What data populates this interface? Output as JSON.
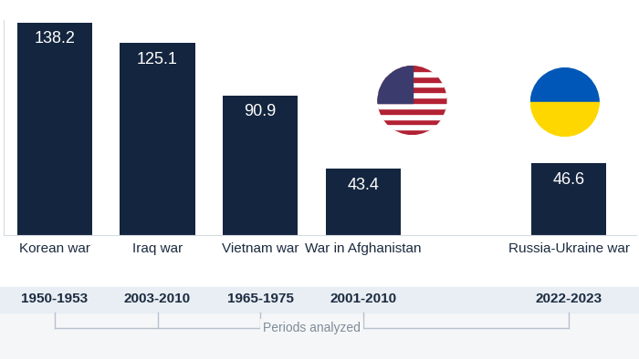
{
  "chart_data": {
    "type": "bar",
    "categories": [
      "Korean war",
      "Iraq war",
      "Vietnam war",
      "War in Afghanistan",
      null,
      "Russia-Ukraine war"
    ],
    "values": [
      138.2,
      125.1,
      90.9,
      43.4,
      null,
      46.6
    ],
    "periods": [
      "1950-1953",
      "2003-2010",
      "1965-1975",
      "2001-2010",
      null,
      "2022-2023"
    ],
    "annotation": "Periods analyzed",
    "color": "#14253f",
    "ylim": [
      0,
      140
    ],
    "yticks": [],
    "data_labels": true,
    "tick_labels": "x"
  }
}
